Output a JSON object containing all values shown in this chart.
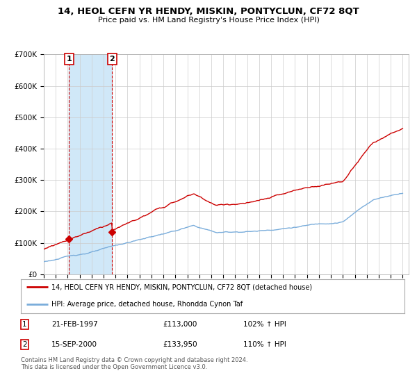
{
  "title": "14, HEOL CEFN YR HENDY, MISKIN, PONTYCLUN, CF72 8QT",
  "subtitle": "Price paid vs. HM Land Registry's House Price Index (HPI)",
  "legend_line1": "14, HEOL CEFN YR HENDY, MISKIN, PONTYCLUN, CF72 8QT (detached house)",
  "legend_line2": "HPI: Average price, detached house, Rhondda Cynon Taf",
  "annotation1_date": "21-FEB-1997",
  "annotation1_price": "£113,000",
  "annotation1_hpi": "102% ↑ HPI",
  "annotation2_date": "15-SEP-2000",
  "annotation2_price": "£133,950",
  "annotation2_hpi": "110% ↑ HPI",
  "footer": "Contains HM Land Registry data © Crown copyright and database right 2024.\nThis data is licensed under the Open Government Licence v3.0.",
  "red_color": "#cc0000",
  "blue_color": "#7aaddb",
  "shade_color": "#d0e8f8",
  "plot_bg_color": "#ffffff",
  "ylim": [
    0,
    700000
  ],
  "yticks": [
    0,
    100000,
    200000,
    300000,
    400000,
    500000,
    600000,
    700000
  ],
  "ytick_labels": [
    "£0",
    "£100K",
    "£200K",
    "£300K",
    "£400K",
    "£500K",
    "£600K",
    "£700K"
  ],
  "sale1_x": 1997.12,
  "sale1_y": 113000,
  "sale2_x": 2000.71,
  "sale2_y": 133950,
  "xlim_min": 1995.0,
  "xlim_max": 2025.5
}
